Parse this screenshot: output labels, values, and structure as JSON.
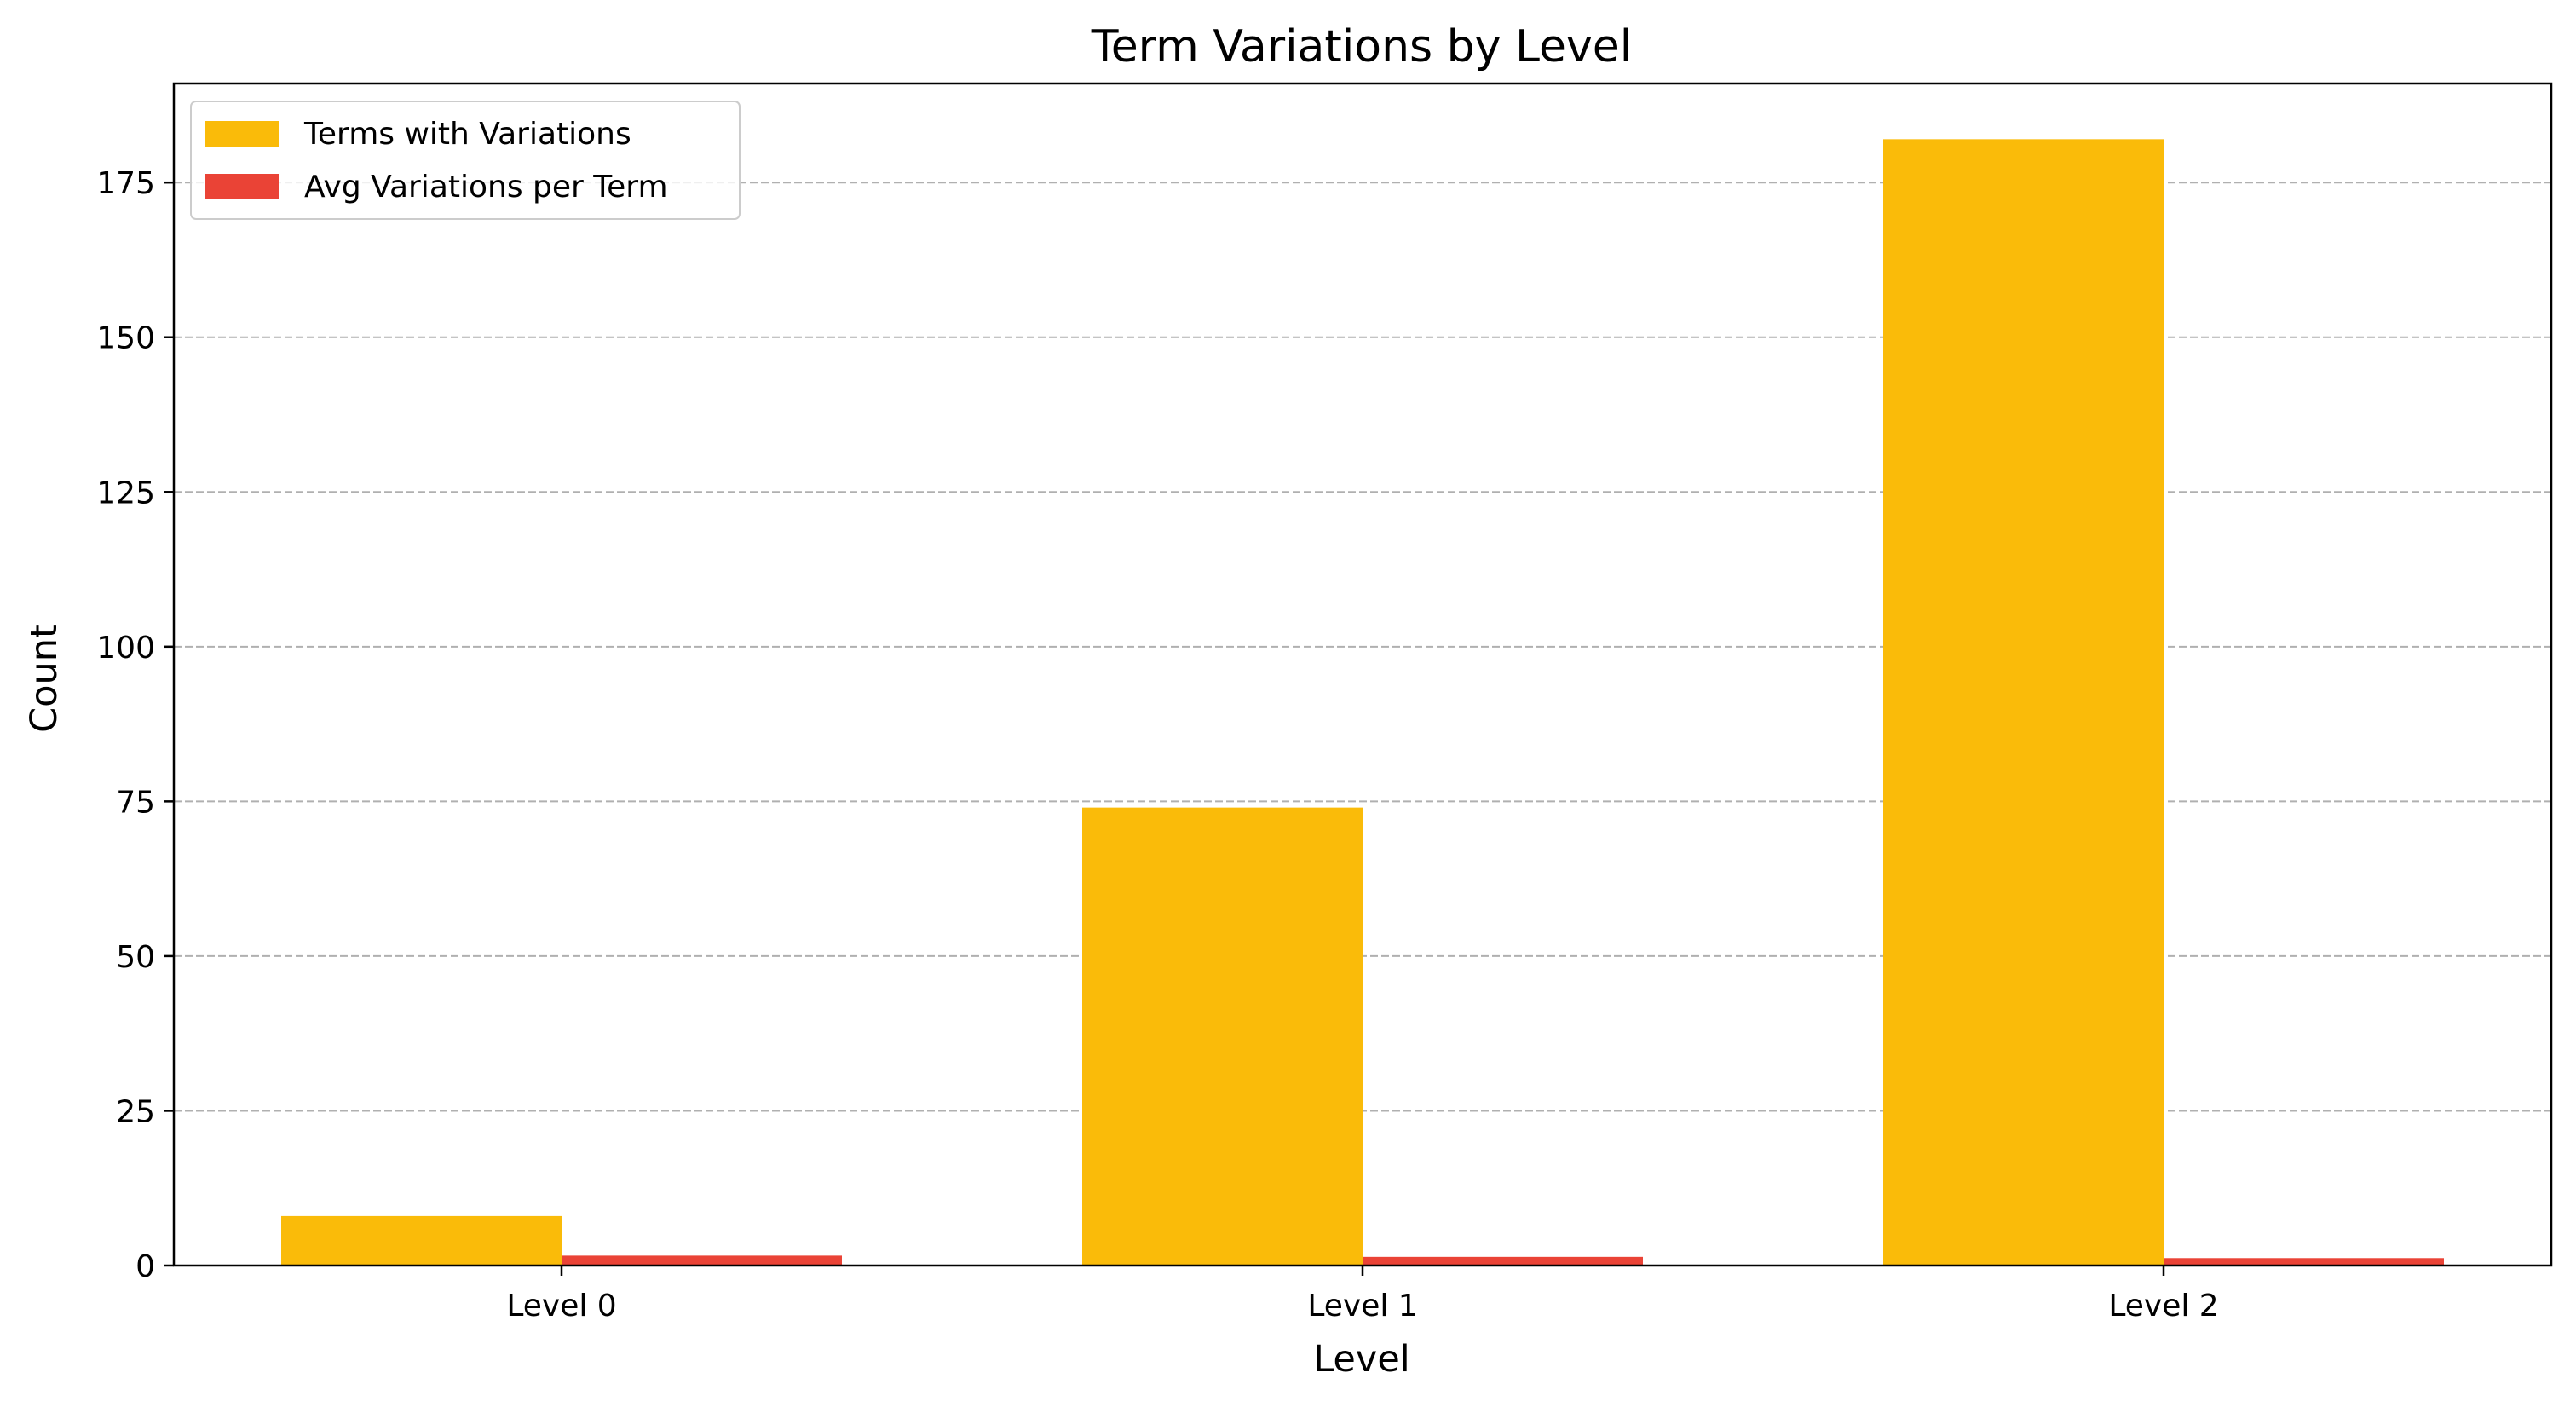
{
  "colors": {
    "series_0": "#FABB09",
    "series_1": "#EA4336",
    "grid": "#b0b0b0",
    "axis": "#000000",
    "legend_border": "#cccccc"
  },
  "chart_data": {
    "type": "bar",
    "title": "Term Variations by Level",
    "xlabel": "Level",
    "ylabel": "Count",
    "categories": [
      "Level 0",
      "Level 1",
      "Level 2"
    ],
    "series": [
      {
        "name": "Terms with Variations",
        "values": [
          8,
          74,
          182
        ]
      },
      {
        "name": "Avg Variations per Term",
        "values": [
          1.6,
          1.4,
          1.2
        ]
      }
    ],
    "ylim": [
      0,
      191
    ],
    "yticks": [
      0,
      25,
      50,
      75,
      100,
      125,
      150,
      175
    ],
    "grid": "y-dashed",
    "legend_position": "top-left"
  }
}
